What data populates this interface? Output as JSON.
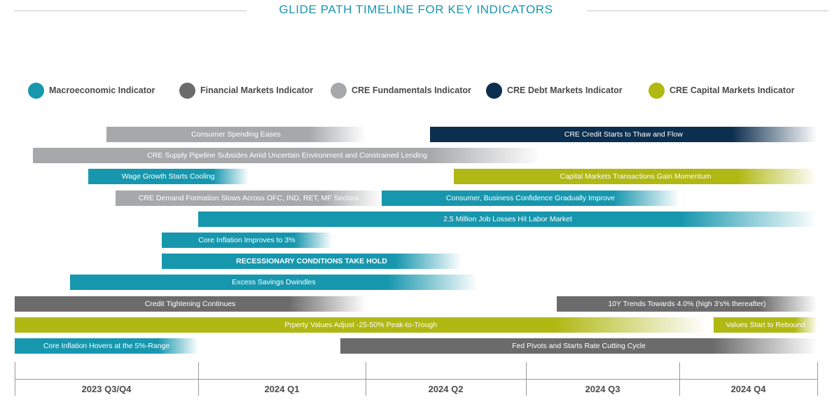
{
  "title": "GLIDE PATH TIMELINE FOR KEY INDICATORS",
  "colors": {
    "macro": "#1797ae",
    "financial": "#6b6b6b",
    "fundamentals": "#a7a8aa",
    "debt": "#0d2f4f",
    "capital": "#b0b813",
    "title": "#1797ae"
  },
  "legend": [
    {
      "label": "Macroeconomic Indicator",
      "color": "#1797ae"
    },
    {
      "label": "Financial Markets Indicator",
      "color": "#6b6b6b"
    },
    {
      "label": "CRE Fundamentals Indicator",
      "color": "#a7a8aa"
    },
    {
      "label": "CRE Debt Markets Indicator",
      "color": "#0d2f4f"
    },
    {
      "label": "CRE Capital Markets Indicator",
      "color": "#b0b813"
    }
  ],
  "chart_data": {
    "type": "timeline",
    "title": "GLIDE PATH TIMELINE FOR KEY INDICATORS",
    "periods": [
      "2023 Q3/Q4",
      "2024 Q1",
      "2024 Q2",
      "2024 Q3",
      "2024 Q4"
    ],
    "x_range": [
      0,
      5
    ],
    "bars": [
      {
        "label": "Consumer Spending Eases",
        "category": "fundamentals",
        "start": 0.5,
        "end": 2.0,
        "fade": "end",
        "row": 0
      },
      {
        "label": "CRE Credit Starts to Thaw and Flow",
        "category": "debt",
        "start": 2.4,
        "end": 5.0,
        "fade": "end",
        "row": 0
      },
      {
        "label": "CRE Supply Pipeline Subsides Amid Uncertain Environment and Constrained Lending",
        "category": "fundamentals",
        "start": 0.1,
        "end": 3.1,
        "fade": "end",
        "row": 1
      },
      {
        "label": "Wage Growth Starts Cooling",
        "category": "macro",
        "start": 0.4,
        "end": 1.3,
        "fade": "end",
        "row": 2
      },
      {
        "label": "Capital Markets Transactions Gain Momentum",
        "category": "capital",
        "start": 2.55,
        "end": 5.0,
        "fade": "end",
        "row": 2
      },
      {
        "label": "CRE Demand Formation Slows Across OFC, IND, RET, MF Sectors",
        "category": "fundamentals",
        "start": 0.55,
        "end": 2.1,
        "fade": "end",
        "row": 3
      },
      {
        "label": "Consumer, Business Confidence Gradually Improve",
        "category": "macro",
        "start": 2.1,
        "end": 4.0,
        "fade": "end",
        "row": 3
      },
      {
        "label": "2.5 Million Job Losses Hit Labor Market",
        "category": "macro",
        "start": 1.0,
        "end": 5.0,
        "fade": "end",
        "row": 4
      },
      {
        "label": "Core Inflation Improves to 3%",
        "category": "macro",
        "start": 0.8,
        "end": 1.8,
        "fade": "end",
        "row": 5
      },
      {
        "label": "RECESSIONARY CONDITIONS TAKE HOLD",
        "category": "macro",
        "start": 0.8,
        "end": 2.6,
        "fade": "end",
        "bold": true,
        "row": 6
      },
      {
        "label": "Excess Savings Dwindles",
        "category": "macro",
        "start": 0.3,
        "end": 2.7,
        "fade": "end",
        "row": 7
      },
      {
        "label": "Credit Tightening Continues",
        "category": "financial",
        "start": 0.0,
        "end": 2.0,
        "fade": "end",
        "row": 8
      },
      {
        "label": "10Y Trends Towards 4.0% (high 3's% thereafter)",
        "category": "financial",
        "start": 3.2,
        "end": 5.0,
        "fade": "end",
        "row": 8
      },
      {
        "label": "Prperty Values Adjust -25-50% Peak-to-Trough",
        "category": "capital",
        "start": 0.0,
        "end": 4.2,
        "fade": "end",
        "row": 9
      },
      {
        "label": "Values Start to Rebound",
        "category": "capital",
        "start": 4.25,
        "end": 5.0,
        "fade": "end",
        "row": 9
      },
      {
        "label": "Core Inflation Hovers at the 5%-Range",
        "category": "macro",
        "start": 0.0,
        "end": 1.0,
        "fade": "end",
        "row": 10
      },
      {
        "label": "Fed Pivots and Starts Rate Cutting Cycle",
        "category": "financial",
        "start": 1.85,
        "end": 5.0,
        "fade": "end",
        "row": 10
      }
    ]
  }
}
